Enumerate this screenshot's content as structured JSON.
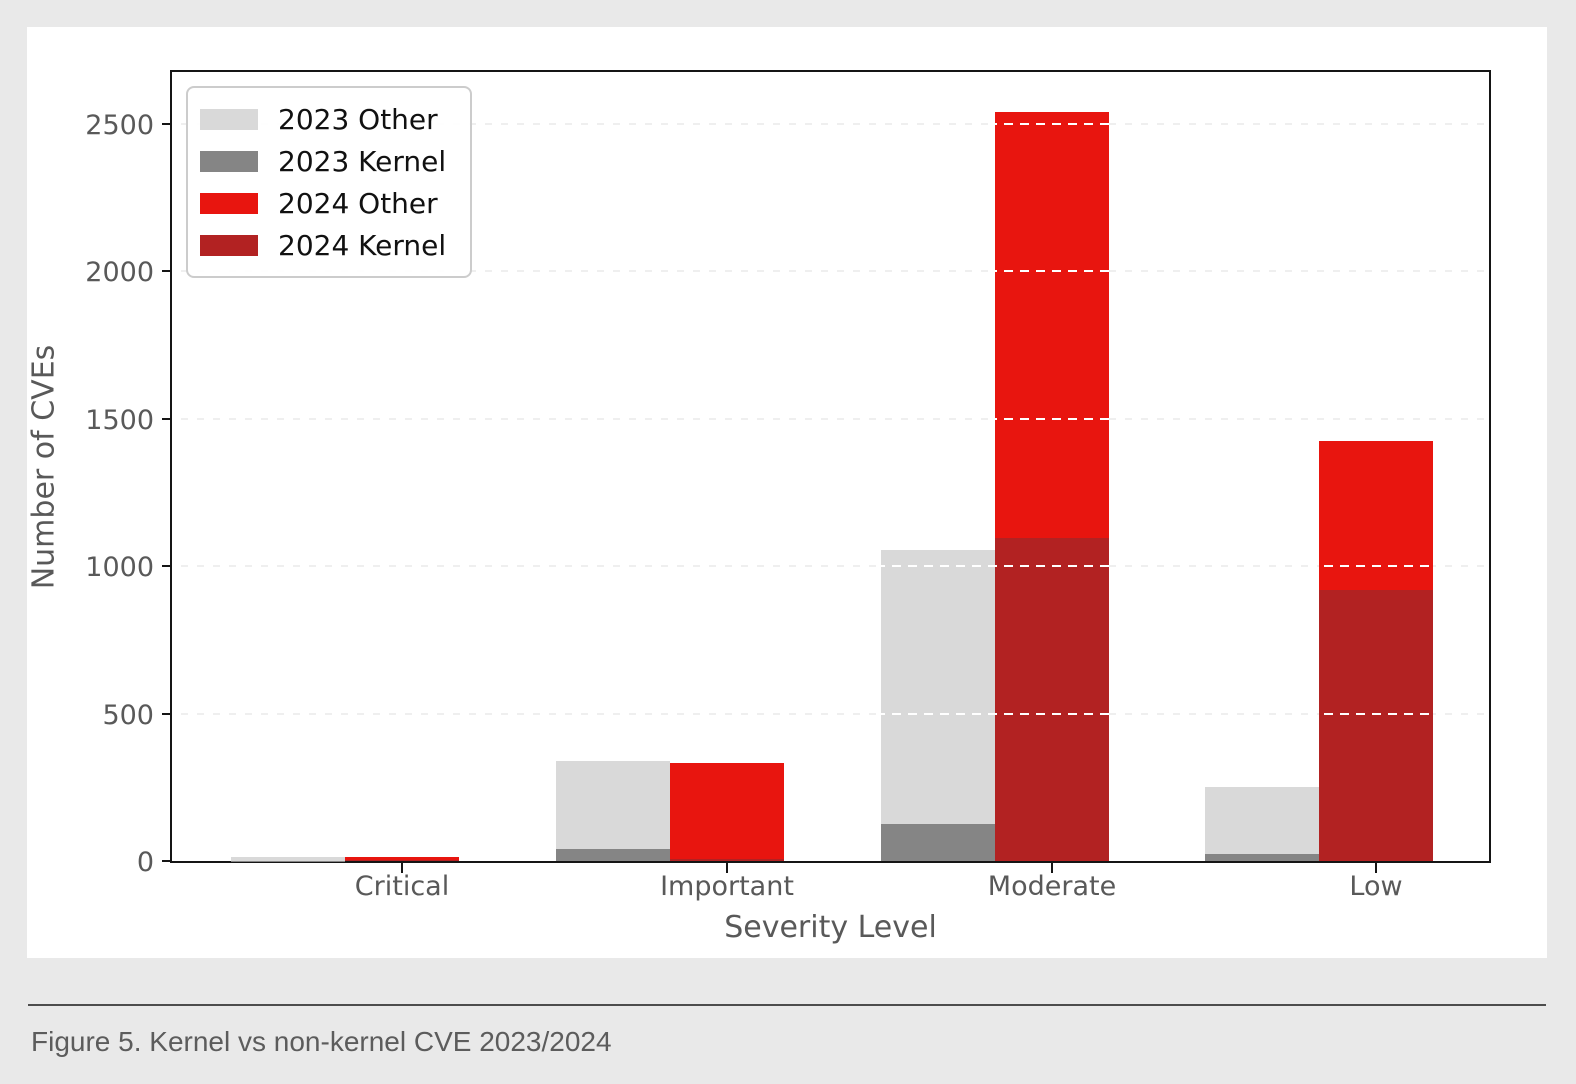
{
  "figure": {
    "caption": "Figure 5. Kernel vs non-kernel CVE 2023/2024"
  },
  "chart_data": {
    "type": "bar",
    "stacked": true,
    "title": "",
    "xlabel": "Severity Level",
    "ylabel": "Number of CVEs",
    "categories": [
      "Critical",
      "Important",
      "Moderate",
      "Low"
    ],
    "series": [
      {
        "name": "2023 Other",
        "color": "#d9d9d9",
        "stack": "2023",
        "values": [
          12,
          300,
          930,
          225
        ]
      },
      {
        "name": "2023 Kernel",
        "color": "#858585",
        "stack": "2023",
        "values": [
          1,
          40,
          125,
          25
        ]
      },
      {
        "name": "2024 Other",
        "color": "#e8150f",
        "stack": "2024",
        "values": [
          11,
          324,
          1445,
          505
        ]
      },
      {
        "name": "2024 Kernel",
        "color": "#b22222",
        "stack": "2024",
        "values": [
          3,
          8,
          1095,
          920
        ]
      }
    ],
    "stack_totals": {
      "2023": [
        13,
        340,
        1055,
        250
      ],
      "2024": [
        14,
        332,
        2540,
        1425
      ]
    },
    "yticks": [
      0,
      500,
      1000,
      1500,
      2000,
      2500
    ],
    "ylim": [
      0,
      2675
    ],
    "grid": true,
    "legend_position": "upper left",
    "axis_color": "#151515",
    "tick_label_color": "#595959",
    "plot_background": "#ffffff",
    "page_background": "#e9e9e9"
  }
}
